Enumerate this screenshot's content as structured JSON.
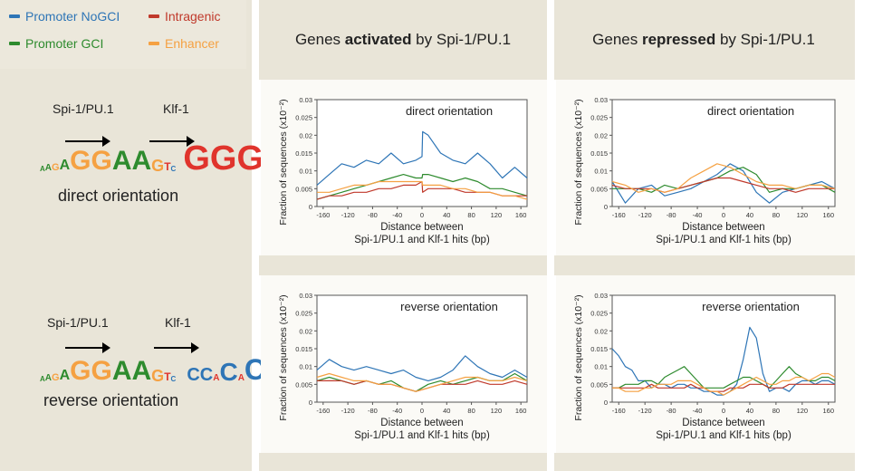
{
  "legend": {
    "items": [
      {
        "label": "Promoter NoGCI",
        "color": "#2e75b6"
      },
      {
        "label": "Intragenic",
        "color": "#c0392b"
      },
      {
        "label": "Promoter GCI",
        "color": "#2e8b2e"
      },
      {
        "label": "Enhancer",
        "color": "#f5a142"
      }
    ]
  },
  "headers": {
    "activated_prefix": "Genes ",
    "activated_bold": "activated",
    "activated_suffix": " by Spi-1/PU.1",
    "repressed_prefix": "Genes ",
    "repressed_bold": "repressed",
    "repressed_suffix": " by Spi-1/PU.1"
  },
  "motifs": {
    "direct": {
      "spi_label": "Spi-1/PU.1",
      "klf_label": "Klf-1",
      "orientation": "direct orientation"
    },
    "reverse": {
      "spi_label": "Spi-1/PU.1",
      "klf_label": "Klf-1",
      "orientation": "reverse orientation"
    }
  },
  "axis_common": {
    "ylabel": "Fraction of sequences (x10⁻²)",
    "xlabel_line1": "Distance between",
    "xlabel_line2": "Spi-1/PU.1 and Klf-1 hits (bp)",
    "xticks": [
      "-160",
      "-120",
      "-80",
      "-40",
      "0",
      "40",
      "80",
      "120",
      "160"
    ],
    "yticks": [
      "0",
      "0.005",
      "0.01",
      "0.015",
      "0.02",
      "0.025",
      "0.03"
    ]
  },
  "chart_data": [
    {
      "id": "activated-direct",
      "type": "line",
      "title": "direct orientation",
      "xlabel": "Distance between Spi-1/PU.1 and Klf-1 hits (bp)",
      "ylabel": "Fraction of sequences (x10^-2)",
      "xlim": [
        -170,
        170
      ],
      "ylim": [
        0,
        0.03
      ],
      "x": [
        -170,
        -150,
        -130,
        -110,
        -90,
        -70,
        -50,
        -30,
        -10,
        0,
        1,
        10,
        30,
        50,
        70,
        90,
        110,
        130,
        150,
        170
      ],
      "series": [
        {
          "name": "Promoter NoGCI",
          "color": "#2e75b6",
          "values": [
            0.006,
            0.009,
            0.012,
            0.011,
            0.013,
            0.012,
            0.015,
            0.012,
            0.013,
            0.014,
            0.021,
            0.02,
            0.015,
            0.013,
            0.012,
            0.015,
            0.012,
            0.008,
            0.011,
            0.008
          ]
        },
        {
          "name": "Promoter GCI",
          "color": "#2e8b2e",
          "values": [
            0.002,
            0.003,
            0.004,
            0.005,
            0.006,
            0.007,
            0.008,
            0.009,
            0.008,
            0.008,
            0.009,
            0.009,
            0.008,
            0.007,
            0.008,
            0.007,
            0.005,
            0.005,
            0.004,
            0.003
          ]
        },
        {
          "name": "Intragenic",
          "color": "#c0392b",
          "values": [
            0.002,
            0.003,
            0.003,
            0.004,
            0.004,
            0.005,
            0.005,
            0.006,
            0.006,
            0.007,
            0.004,
            0.005,
            0.005,
            0.005,
            0.004,
            0.004,
            0.004,
            0.003,
            0.003,
            0.003
          ]
        },
        {
          "name": "Enhancer",
          "color": "#f5a142",
          "values": [
            0.004,
            0.004,
            0.005,
            0.006,
            0.006,
            0.007,
            0.007,
            0.007,
            0.007,
            0.007,
            0.006,
            0.006,
            0.006,
            0.005,
            0.005,
            0.004,
            0.004,
            0.003,
            0.003,
            0.002
          ]
        }
      ]
    },
    {
      "id": "repressed-direct",
      "type": "line",
      "title": "direct orientation",
      "xlabel": "Distance between Spi-1/PU.1 and Klf-1 hits (bp)",
      "ylabel": "Fraction of sequences (x10^-2)",
      "xlim": [
        -170,
        170
      ],
      "ylim": [
        0,
        0.03
      ],
      "x": [
        -170,
        -150,
        -130,
        -110,
        -90,
        -70,
        -50,
        -30,
        -10,
        10,
        30,
        50,
        70,
        90,
        110,
        130,
        150,
        170
      ],
      "series": [
        {
          "name": "Promoter NoGCI",
          "color": "#2e75b6",
          "values": [
            0.007,
            0.001,
            0.005,
            0.006,
            0.003,
            0.004,
            0.005,
            0.007,
            0.009,
            0.012,
            0.01,
            0.004,
            0.001,
            0.004,
            0.005,
            0.006,
            0.007,
            0.005
          ]
        },
        {
          "name": "Promoter GCI",
          "color": "#2e8b2e",
          "values": [
            0.005,
            0.005,
            0.005,
            0.004,
            0.006,
            0.005,
            0.006,
            0.007,
            0.008,
            0.01,
            0.011,
            0.009,
            0.004,
            0.005,
            0.005,
            0.006,
            0.006,
            0.004
          ]
        },
        {
          "name": "Intragenic",
          "color": "#c0392b",
          "values": [
            0.006,
            0.005,
            0.005,
            0.005,
            0.004,
            0.005,
            0.006,
            0.007,
            0.008,
            0.008,
            0.007,
            0.006,
            0.005,
            0.005,
            0.004,
            0.005,
            0.005,
            0.005
          ]
        },
        {
          "name": "Enhancer",
          "color": "#f5a142",
          "values": [
            0.007,
            0.006,
            0.004,
            0.005,
            0.004,
            0.005,
            0.008,
            0.01,
            0.012,
            0.011,
            0.009,
            0.007,
            0.006,
            0.006,
            0.005,
            0.006,
            0.006,
            0.005
          ]
        }
      ]
    },
    {
      "id": "activated-reverse",
      "type": "line",
      "title": "reverse orientation",
      "xlabel": "Distance between Spi-1/PU.1 and Klf-1 hits (bp)",
      "ylabel": "Fraction of sequences (x10^-2)",
      "xlim": [
        -170,
        170
      ],
      "ylim": [
        0,
        0.03
      ],
      "x": [
        -170,
        -150,
        -130,
        -110,
        -90,
        -70,
        -50,
        -30,
        -10,
        10,
        30,
        50,
        70,
        90,
        110,
        130,
        150,
        170
      ],
      "series": [
        {
          "name": "Promoter NoGCI",
          "color": "#2e75b6",
          "values": [
            0.009,
            0.012,
            0.01,
            0.009,
            0.01,
            0.009,
            0.008,
            0.009,
            0.007,
            0.006,
            0.007,
            0.009,
            0.013,
            0.01,
            0.008,
            0.007,
            0.009,
            0.007
          ]
        },
        {
          "name": "Promoter GCI",
          "color": "#2e8b2e",
          "values": [
            0.006,
            0.007,
            0.006,
            0.005,
            0.006,
            0.005,
            0.006,
            0.004,
            0.003,
            0.005,
            0.006,
            0.005,
            0.006,
            0.007,
            0.006,
            0.006,
            0.008,
            0.006
          ]
        },
        {
          "name": "Intragenic",
          "color": "#c0392b",
          "values": [
            0.006,
            0.006,
            0.006,
            0.005,
            0.006,
            0.005,
            0.005,
            0.004,
            0.003,
            0.004,
            0.005,
            0.005,
            0.005,
            0.006,
            0.005,
            0.005,
            0.006,
            0.005
          ]
        },
        {
          "name": "Enhancer",
          "color": "#f5a142",
          "values": [
            0.007,
            0.008,
            0.007,
            0.006,
            0.006,
            0.005,
            0.005,
            0.004,
            0.003,
            0.004,
            0.005,
            0.006,
            0.007,
            0.007,
            0.006,
            0.006,
            0.007,
            0.006
          ]
        }
      ]
    },
    {
      "id": "repressed-reverse",
      "type": "line",
      "title": "reverse orientation",
      "xlabel": "Distance between Spi-1/PU.1 and Klf-1 hits (bp)",
      "ylabel": "Fraction of sequences (x10^-2)",
      "xlim": [
        -170,
        170
      ],
      "ylim": [
        0,
        0.03
      ],
      "x": [
        -170,
        -160,
        -150,
        -140,
        -130,
        -120,
        -110,
        -100,
        -90,
        -80,
        -70,
        -60,
        -50,
        -40,
        -30,
        -20,
        -10,
        0,
        10,
        20,
        30,
        40,
        50,
        60,
        70,
        80,
        90,
        100,
        110,
        120,
        130,
        140,
        150,
        160,
        170
      ],
      "series": [
        {
          "name": "Promoter NoGCI",
          "color": "#2e75b6",
          "values": [
            0.015,
            0.013,
            0.01,
            0.009,
            0.006,
            0.006,
            0.004,
            0.005,
            0.005,
            0.004,
            0.005,
            0.005,
            0.004,
            0.004,
            0.003,
            0.003,
            0.002,
            0.002,
            0.003,
            0.005,
            0.012,
            0.021,
            0.018,
            0.008,
            0.003,
            0.004,
            0.004,
            0.003,
            0.005,
            0.006,
            0.006,
            0.005,
            0.006,
            0.006,
            0.005
          ]
        },
        {
          "name": "Promoter GCI",
          "color": "#2e8b2e",
          "values": [
            0.004,
            0.004,
            0.005,
            0.005,
            0.005,
            0.006,
            0.006,
            0.005,
            0.007,
            0.008,
            0.009,
            0.01,
            0.008,
            0.006,
            0.004,
            0.004,
            0.004,
            0.004,
            0.005,
            0.006,
            0.007,
            0.007,
            0.006,
            0.005,
            0.004,
            0.006,
            0.008,
            0.01,
            0.008,
            0.007,
            0.006,
            0.006,
            0.007,
            0.007,
            0.006
          ]
        },
        {
          "name": "Intragenic",
          "color": "#c0392b",
          "values": [
            0.004,
            0.004,
            0.004,
            0.004,
            0.004,
            0.004,
            0.005,
            0.004,
            0.004,
            0.004,
            0.004,
            0.004,
            0.005,
            0.004,
            0.004,
            0.003,
            0.003,
            0.003,
            0.004,
            0.004,
            0.004,
            0.005,
            0.005,
            0.005,
            0.004,
            0.004,
            0.004,
            0.005,
            0.005,
            0.005,
            0.005,
            0.005,
            0.005,
            0.005,
            0.005
          ]
        },
        {
          "name": "Enhancer",
          "color": "#f5a142",
          "values": [
            0.004,
            0.004,
            0.003,
            0.003,
            0.003,
            0.004,
            0.004,
            0.005,
            0.005,
            0.005,
            0.006,
            0.006,
            0.006,
            0.005,
            0.004,
            0.003,
            0.003,
            0.002,
            0.003,
            0.004,
            0.005,
            0.006,
            0.007,
            0.006,
            0.005,
            0.005,
            0.006,
            0.006,
            0.007,
            0.007,
            0.006,
            0.007,
            0.008,
            0.008,
            0.007
          ]
        }
      ]
    }
  ]
}
